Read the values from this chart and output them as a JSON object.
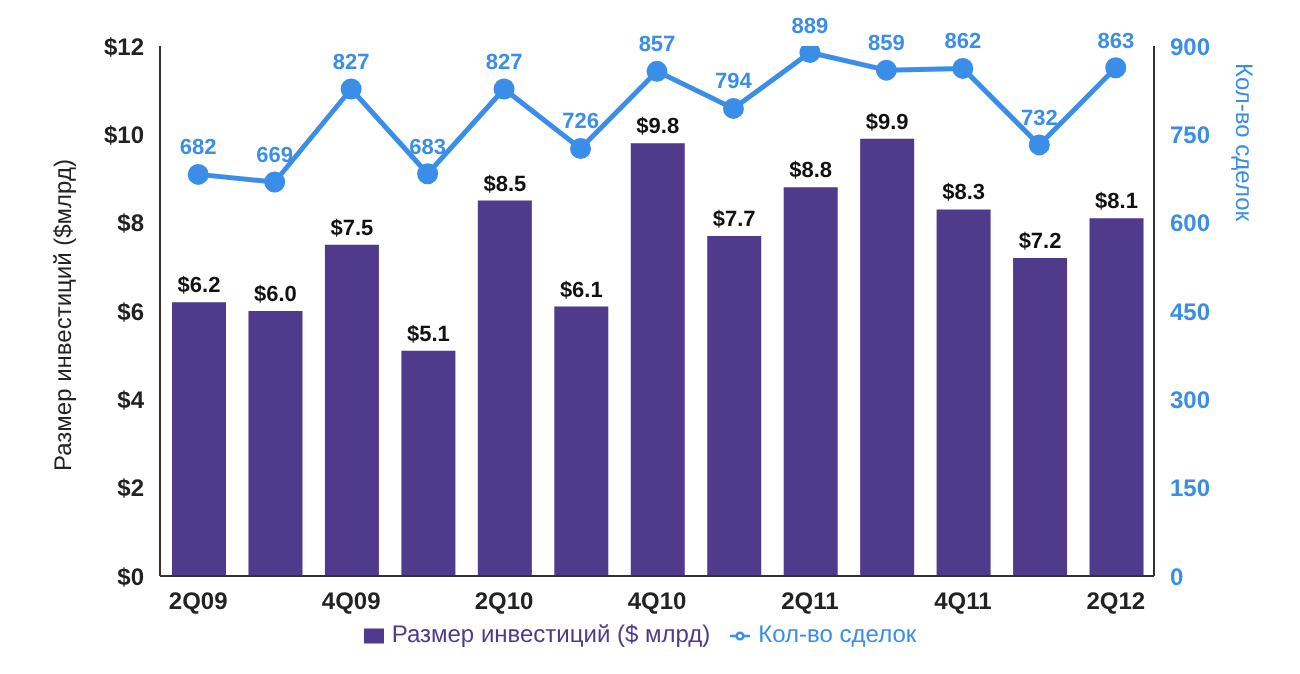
{
  "chart_data": {
    "type": "bar",
    "ylabel": "Размер инвестиций ($млрд)",
    "y2label": "Кол-во сделок",
    "categories": [
      "2Q09",
      null,
      "4Q09",
      null,
      "2Q10",
      null,
      "4Q10",
      null,
      "2Q11",
      null,
      "4Q11",
      null,
      "2Q12"
    ],
    "series": [
      {
        "name": "Размер инвестиций ($ млрд)",
        "color": "#4f3a8c",
        "values": [
          6.2,
          6.0,
          7.5,
          5.1,
          8.5,
          6.1,
          9.8,
          7.7,
          8.8,
          9.9,
          8.3,
          7.2,
          8.1
        ],
        "value_labels": [
          "$6.2",
          "$6.0",
          "$7.5",
          "$5.1",
          "$8.5",
          "$6.1",
          "$9.8",
          "$7.7",
          "$8.8",
          "$9.9",
          "$8.3",
          "$7.2",
          "$8.1"
        ]
      },
      {
        "name": "Кол-во сделок",
        "type": "line",
        "axis": "y2",
        "color": "#3b8ee8",
        "values": [
          682,
          669,
          827,
          683,
          827,
          726,
          857,
          794,
          889,
          859,
          862,
          732,
          863
        ],
        "value_labels": [
          "682",
          "669",
          "827",
          "683",
          "827",
          "726",
          "857",
          "794",
          "889",
          "859",
          "862",
          "732",
          "863"
        ]
      }
    ],
    "ylim": [
      0,
      12
    ],
    "yticks": [
      {
        "value": 0,
        "label": "$0"
      },
      {
        "value": 2,
        "label": "$2"
      },
      {
        "value": 4,
        "label": "$4"
      },
      {
        "value": 6,
        "label": "$6"
      },
      {
        "value": 8,
        "label": "$8"
      },
      {
        "value": 10,
        "label": "$10"
      },
      {
        "value": 12,
        "label": "$12"
      }
    ],
    "y2lim": [
      0,
      900
    ],
    "y2ticks": [
      0,
      150,
      300,
      450,
      600,
      750,
      900
    ],
    "marker": "circle",
    "legend": "bottom",
    "grid": false
  }
}
